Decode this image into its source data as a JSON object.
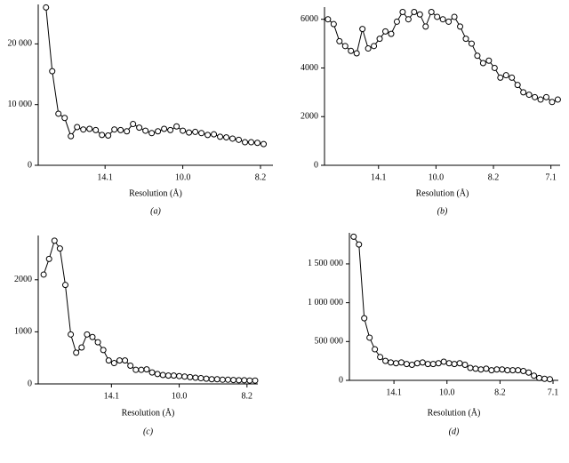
{
  "chart_data": [
    {
      "type": "line",
      "caption": "(a)",
      "xlabel": "Resolution (Å)",
      "color": "#000000",
      "marker": "circle",
      "x": [
        0.0012,
        0.0016,
        0.002,
        0.0024,
        0.0028,
        0.0032,
        0.0036,
        0.004,
        0.0044,
        0.0048,
        0.0052,
        0.0056,
        0.006,
        0.0064,
        0.0068,
        0.0072,
        0.0076,
        0.008,
        0.0084,
        0.0088,
        0.0092,
        0.0096,
        0.01,
        0.0104,
        0.0108,
        0.0112,
        0.0116,
        0.012,
        0.0124,
        0.0128,
        0.0132,
        0.0136,
        0.014,
        0.0144,
        0.0148,
        0.0152
      ],
      "values": [
        26000,
        15500,
        8500,
        7800,
        4800,
        6300,
        5900,
        6000,
        5800,
        5000,
        4900,
        5900,
        5800,
        5600,
        6800,
        6200,
        5700,
        5300,
        5600,
        6000,
        5800,
        6400,
        5700,
        5400,
        5500,
        5300,
        5000,
        5100,
        4700,
        4600,
        4400,
        4200,
        3800,
        3800,
        3700,
        3500
      ],
      "xlim": [
        0.0007,
        0.0158
      ],
      "xticks": [
        {
          "value": 0.005,
          "label": "14.1"
        },
        {
          "value": 0.01,
          "label": "10.0"
        },
        {
          "value": 0.015,
          "label": "8.2"
        }
      ],
      "ylim": [
        0,
        26500
      ],
      "yticks": [
        0,
        {
          "value": 10000,
          "label": "10 000"
        },
        {
          "value": 20000,
          "label": "20 000"
        }
      ]
    },
    {
      "type": "line",
      "caption": "(b)",
      "xlabel": "Resolution (Å)",
      "color": "#000000",
      "marker": "circle",
      "x": [
        0.0006,
        0.0011,
        0.0016,
        0.0021,
        0.0026,
        0.0031,
        0.0036,
        0.0041,
        0.0046,
        0.0051,
        0.0056,
        0.0061,
        0.0066,
        0.0071,
        0.0076,
        0.0081,
        0.0086,
        0.0091,
        0.0096,
        0.0101,
        0.0106,
        0.0111,
        0.0116,
        0.0121,
        0.0126,
        0.0131,
        0.0136,
        0.0141,
        0.0146,
        0.0151,
        0.0156,
        0.0161,
        0.0166,
        0.0171,
        0.0176,
        0.0181,
        0.0186,
        0.0191,
        0.0196,
        0.0201,
        0.0206
      ],
      "values": [
        6000,
        5800,
        5100,
        4900,
        4700,
        4600,
        5600,
        4800,
        4900,
        5200,
        5500,
        5400,
        5900,
        6300,
        6000,
        6300,
        6200,
        5700,
        6300,
        6100,
        6000,
        5900,
        6100,
        5700,
        5200,
        5000,
        4500,
        4200,
        4300,
        4000,
        3600,
        3700,
        3600,
        3300,
        3000,
        2900,
        2800,
        2700,
        2800,
        2600,
        2700
      ],
      "xlim": [
        0.0003,
        0.0208
      ],
      "xticks": [
        {
          "value": 0.005,
          "label": "14.1"
        },
        {
          "value": 0.01,
          "label": "10.0"
        },
        {
          "value": 0.015,
          "label": "8.2"
        },
        {
          "value": 0.02,
          "label": "7.1"
        }
      ],
      "ylim": [
        0,
        6500
      ],
      "yticks": [
        0,
        2000,
        4000,
        6000
      ]
    },
    {
      "type": "line",
      "caption": "(c)",
      "xlabel": "Resolution (Å)",
      "color": "#000000",
      "marker": "circle",
      "x": [
        0,
        0.0004,
        0.0008,
        0.0012,
        0.0016,
        0.002,
        0.0024,
        0.0028,
        0.0032,
        0.0036,
        0.004,
        0.0044,
        0.0048,
        0.0052,
        0.0056,
        0.006,
        0.0064,
        0.0068,
        0.0072,
        0.0076,
        0.008,
        0.0084,
        0.0088,
        0.0092,
        0.0096,
        0.01,
        0.0104,
        0.0108,
        0.0112,
        0.0116,
        0.012,
        0.0124,
        0.0128,
        0.0132,
        0.0136,
        0.014,
        0.0144,
        0.0148,
        0.0152,
        0.0156
      ],
      "values": [
        2100,
        2400,
        2750,
        2600,
        1900,
        950,
        600,
        700,
        950,
        900,
        800,
        650,
        450,
        400,
        450,
        450,
        350,
        270,
        270,
        280,
        220,
        190,
        170,
        160,
        160,
        150,
        140,
        130,
        120,
        110,
        100,
        90,
        90,
        80,
        80,
        75,
        70,
        70,
        65,
        65
      ],
      "xlim": [
        -0.0004,
        0.0158
      ],
      "xticks": [
        {
          "value": 0.005,
          "label": "14.1"
        },
        {
          "value": 0.01,
          "label": "10.0"
        },
        {
          "value": 0.015,
          "label": "8.2"
        }
      ],
      "ylim": [
        0,
        2850
      ],
      "yticks": [
        0,
        1000,
        2000
      ]
    },
    {
      "type": "line",
      "caption": "(d)",
      "xlabel": "Resolution (Å)",
      "color": "#000000",
      "marker": "circle",
      "x": [
        0.0012,
        0.0017,
        0.0022,
        0.0027,
        0.0032,
        0.0037,
        0.0042,
        0.0047,
        0.0052,
        0.0057,
        0.0062,
        0.0067,
        0.0072,
        0.0077,
        0.0082,
        0.0087,
        0.0092,
        0.0097,
        0.0102,
        0.0107,
        0.0112,
        0.0117,
        0.0122,
        0.0127,
        0.0132,
        0.0137,
        0.0142,
        0.0147,
        0.0152,
        0.0157,
        0.0162,
        0.0167,
        0.0172,
        0.0177,
        0.0182,
        0.0187,
        0.0192,
        0.0197
      ],
      "values": [
        1850000,
        1750000,
        800000,
        550000,
        400000,
        300000,
        250000,
        230000,
        220000,
        230000,
        210000,
        200000,
        220000,
        230000,
        210000,
        210000,
        220000,
        240000,
        220000,
        210000,
        220000,
        200000,
        160000,
        150000,
        140000,
        150000,
        130000,
        140000,
        140000,
        130000,
        130000,
        130000,
        120000,
        100000,
        60000,
        30000,
        20000,
        15000
      ],
      "xlim": [
        0.0008,
        0.0205
      ],
      "xticks": [
        {
          "value": 0.005,
          "label": "14.1"
        },
        {
          "value": 0.01,
          "label": "10.0"
        },
        {
          "value": 0.015,
          "label": "8.2"
        },
        {
          "value": 0.02,
          "label": "7.1"
        }
      ],
      "ylim": [
        0,
        1900000
      ],
      "yticks": [
        0,
        {
          "value": 500000,
          "label": "500 000"
        },
        {
          "value": 1000000,
          "label": "1 000 000"
        },
        {
          "value": 1500000,
          "label": "1 500 000"
        }
      ]
    }
  ]
}
